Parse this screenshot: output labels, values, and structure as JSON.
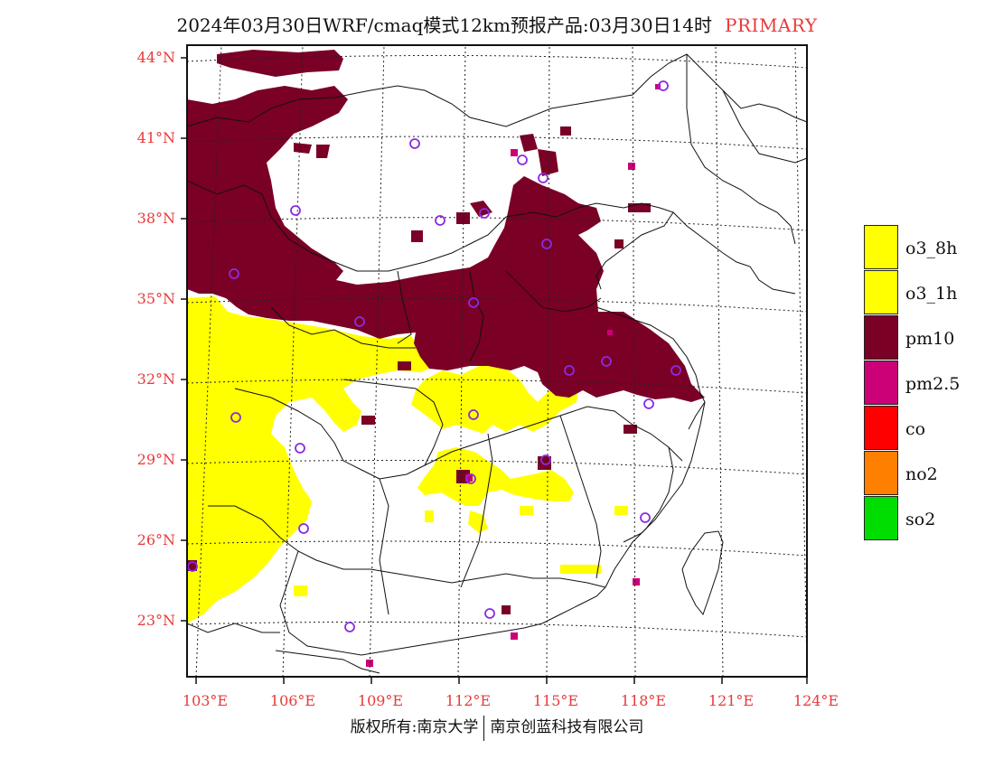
{
  "title": {
    "main": "2024年03月30日WRF/cmaq模式12km预报产品:03月30日14时",
    "tag": "PRIMARY"
  },
  "axes": {
    "lat_labels": [
      "44°N",
      "41°N",
      "38°N",
      "35°N",
      "32°N",
      "29°N",
      "26°N",
      "23°N"
    ],
    "lon_labels": [
      "103°E",
      "106°E",
      "109°E",
      "112°E",
      "115°E",
      "118°E",
      "121°E",
      "124°E"
    ]
  },
  "legend": [
    {
      "label": "o3_8h",
      "color": "#ffff00"
    },
    {
      "label": "o3_1h",
      "color": "#ffff00"
    },
    {
      "label": "pm10",
      "color": "#7a0026"
    },
    {
      "label": "pm2.5",
      "color": "#cc0077"
    },
    {
      "label": "co",
      "color": "#ff0000"
    },
    {
      "label": "no2",
      "color": "#ff7f00"
    },
    {
      "label": "so2",
      "color": "#00dd00"
    }
  ],
  "colors": {
    "pm10": "#7a0026",
    "o3": "#ffff00",
    "pm25": "#cc0077",
    "station": "#8a2be2",
    "label": "#e83a3a"
  },
  "footer": {
    "left": "版权所有:南京大学",
    "right": "南京创蓝科技有限公司"
  }
}
